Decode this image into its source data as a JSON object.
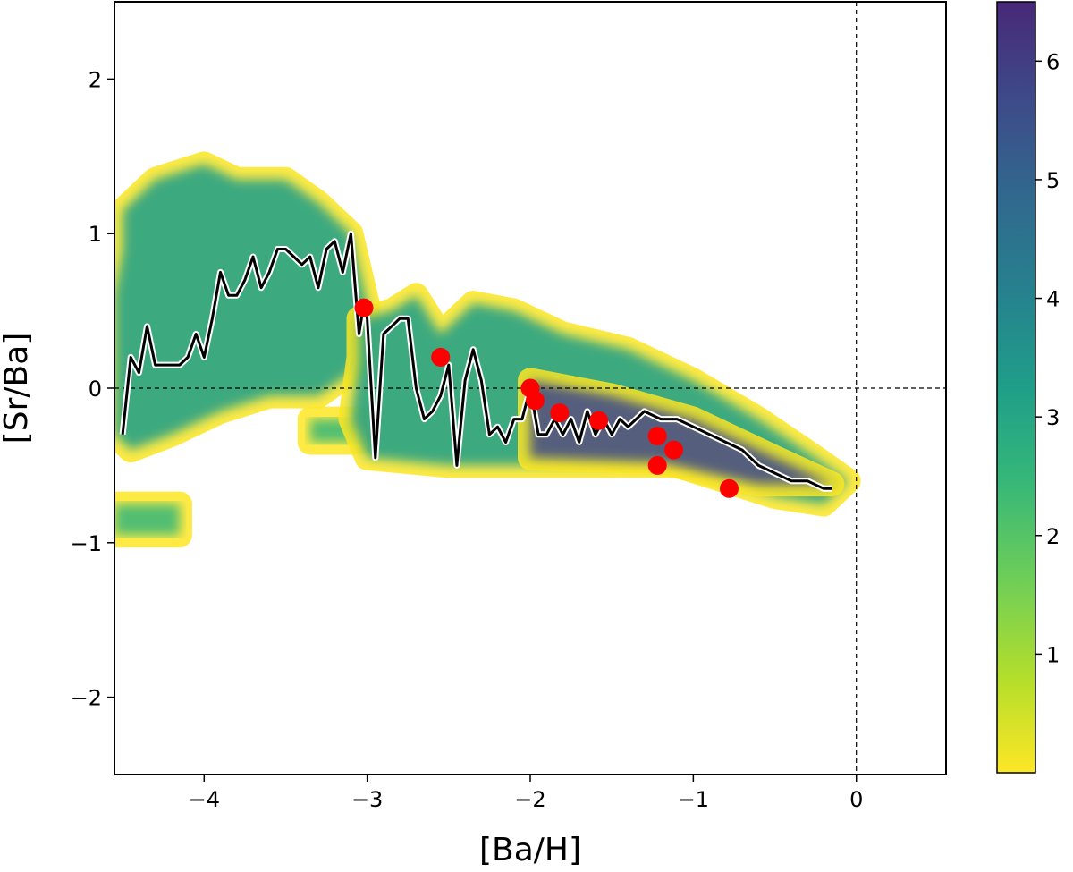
{
  "chart_data": {
    "type": "scatter",
    "title": "",
    "xlabel": "[Ba/H]",
    "ylabel": "[Sr/Ba]",
    "xlim": [
      -4.55,
      0.55
    ],
    "ylim": [
      -2.5,
      2.5
    ],
    "xticks": [
      -4,
      -3,
      -2,
      -1,
      0
    ],
    "yticks": [
      -2,
      -1,
      0,
      1,
      2
    ],
    "reference_lines": {
      "x": 0,
      "y": 0,
      "style": "dashed"
    },
    "colormap": "viridis_r",
    "colorbar": {
      "min": 0,
      "max": 6.5,
      "ticks": [
        1,
        2,
        3,
        4,
        5,
        6
      ]
    },
    "density_regions": [
      {
        "points": [
          [
            -4.5,
            1.15
          ],
          [
            -4.3,
            1.35
          ],
          [
            -4.0,
            1.45
          ],
          [
            -3.8,
            1.35
          ],
          [
            -3.5,
            1.35
          ],
          [
            -3.3,
            1.2
          ],
          [
            -3.1,
            1.0
          ],
          [
            -3.0,
            0.55
          ],
          [
            -3.0,
            0.25
          ],
          [
            -3.1,
            0.1
          ],
          [
            -3.3,
            -0.05
          ],
          [
            -3.6,
            -0.05
          ],
          [
            -3.9,
            -0.15
          ],
          [
            -4.2,
            -0.3
          ],
          [
            -4.45,
            -0.4
          ],
          [
            -4.55,
            -0.3
          ],
          [
            -4.55,
            0.6
          ],
          [
            -4.5,
            0.9
          ]
        ],
        "level": 3.0
      },
      {
        "points": [
          [
            -3.35,
            -0.2
          ],
          [
            -3.05,
            -0.2
          ],
          [
            -3.05,
            -0.35
          ],
          [
            -3.35,
            -0.35
          ]
        ],
        "level": 2.5
      },
      {
        "points": [
          [
            -4.55,
            -0.75
          ],
          [
            -4.15,
            -0.75
          ],
          [
            -4.15,
            -0.95
          ],
          [
            -4.55,
            -0.95
          ]
        ],
        "level": 2.2
      },
      {
        "points": [
          [
            -3.05,
            0.45
          ],
          [
            -2.85,
            0.5
          ],
          [
            -2.7,
            0.6
          ],
          [
            -2.55,
            0.35
          ],
          [
            -2.35,
            0.55
          ],
          [
            -2.1,
            0.5
          ],
          [
            -1.8,
            0.35
          ],
          [
            -1.4,
            0.25
          ],
          [
            -1.0,
            0.05
          ],
          [
            -0.6,
            -0.2
          ],
          [
            -0.25,
            -0.45
          ],
          [
            -0.05,
            -0.6
          ],
          [
            -0.2,
            -0.75
          ],
          [
            -0.5,
            -0.7
          ],
          [
            -0.8,
            -0.6
          ],
          [
            -1.1,
            -0.5
          ],
          [
            -1.6,
            -0.5
          ],
          [
            -2.1,
            -0.5
          ],
          [
            -2.5,
            -0.5
          ],
          [
            -3.0,
            -0.45
          ],
          [
            -3.1,
            -0.2
          ],
          [
            -3.05,
            0.2
          ]
        ],
        "level": 3.5
      },
      {
        "points": [
          [
            -2.0,
            0.05
          ],
          [
            -1.5,
            -0.05
          ],
          [
            -1.0,
            -0.2
          ],
          [
            -0.5,
            -0.45
          ],
          [
            -0.15,
            -0.62
          ],
          [
            -0.6,
            -0.62
          ],
          [
            -1.2,
            -0.48
          ],
          [
            -2.0,
            -0.45
          ]
        ],
        "level": 5.3
      }
    ],
    "series": [
      {
        "type": "line",
        "x": [
          -4.5,
          -4.45,
          -4.4,
          -4.35,
          -4.3,
          -4.25,
          -4.2,
          -4.15,
          -4.1,
          -4.05,
          -4.0,
          -3.95,
          -3.9,
          -3.85,
          -3.8,
          -3.75,
          -3.7,
          -3.65,
          -3.6,
          -3.55,
          -3.5,
          -3.45,
          -3.4,
          -3.35,
          -3.3,
          -3.25,
          -3.2,
          -3.15,
          -3.1,
          -3.05,
          -3.02,
          -3.0,
          -2.95,
          -2.9,
          -2.85,
          -2.8,
          -2.75,
          -2.7,
          -2.65,
          -2.6,
          -2.55,
          -2.5,
          -2.45,
          -2.4,
          -2.35,
          -2.3,
          -2.25,
          -2.2,
          -2.15,
          -2.1,
          -2.05,
          -2.0,
          -1.95,
          -1.9,
          -1.85,
          -1.8,
          -1.75,
          -1.7,
          -1.65,
          -1.6,
          -1.55,
          -1.5,
          -1.45,
          -1.4,
          -1.35,
          -1.3,
          -1.2,
          -1.1,
          -1.0,
          -0.9,
          -0.8,
          -0.7,
          -0.6,
          -0.5,
          -0.4,
          -0.3,
          -0.2,
          -0.15
        ],
        "y": [
          -0.3,
          0.2,
          0.1,
          0.4,
          0.15,
          0.15,
          0.15,
          0.15,
          0.2,
          0.35,
          0.2,
          0.45,
          0.75,
          0.6,
          0.6,
          0.7,
          0.85,
          0.65,
          0.75,
          0.9,
          0.9,
          0.85,
          0.8,
          0.85,
          0.65,
          0.9,
          0.95,
          0.75,
          1.0,
          0.35,
          0.55,
          0.45,
          -0.45,
          0.35,
          0.4,
          0.45,
          0.45,
          0.0,
          -0.2,
          -0.15,
          -0.05,
          0.15,
          -0.5,
          0.05,
          0.25,
          0.05,
          -0.3,
          -0.25,
          -0.35,
          -0.2,
          -0.2,
          0.0,
          -0.3,
          -0.3,
          -0.2,
          -0.3,
          -0.2,
          -0.35,
          -0.15,
          -0.3,
          -0.2,
          -0.3,
          -0.2,
          -0.25,
          -0.2,
          -0.15,
          -0.2,
          -0.2,
          -0.25,
          -0.3,
          -0.35,
          -0.4,
          -0.5,
          -0.55,
          -0.6,
          -0.6,
          -0.65,
          -0.65
        ]
      },
      {
        "type": "scatter",
        "x": [
          -3.02,
          -2.55,
          -2.0,
          -1.97,
          -1.82,
          -1.58,
          -1.22,
          -1.22,
          -1.12,
          -0.78
        ],
        "y": [
          0.52,
          0.2,
          0.0,
          -0.08,
          -0.16,
          -0.21,
          -0.31,
          -0.5,
          -0.4,
          -0.65
        ]
      }
    ]
  }
}
